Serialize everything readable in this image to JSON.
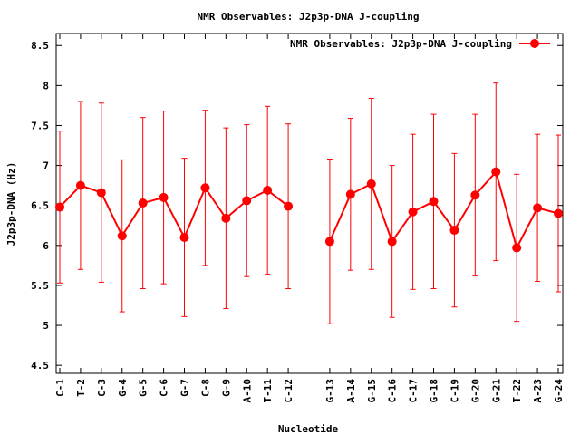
{
  "chart_data": {
    "type": "line",
    "title": "NMR Observables: J2p3p-DNA J-coupling",
    "xlabel": "Nucleotide",
    "ylabel": "J2p3p-DNA (Hz)",
    "ylim": [
      4.4,
      8.65
    ],
    "yticks": [
      4.5,
      5,
      5.5,
      6,
      6.5,
      7,
      7.5,
      8,
      8.5
    ],
    "ytick_labels": [
      "4.5",
      "5",
      "5.5",
      "6",
      "6.5",
      "7",
      "7.5",
      "8",
      "8.5"
    ],
    "xlim": [
      1,
      25
    ],
    "legend_position": "top-right",
    "grid": false,
    "color": "#ff0000",
    "series": [
      {
        "name": "NMR Observables: J2p3p-DNA J-coupling",
        "points": [
          {
            "x": 1,
            "label": "C-1",
            "y": 6.48,
            "err": 0.95
          },
          {
            "x": 2,
            "label": "T-2",
            "y": 6.75,
            "err": 1.05
          },
          {
            "x": 3,
            "label": "C-3",
            "y": 6.66,
            "err": 1.12
          },
          {
            "x": 4,
            "label": "G-4",
            "y": 6.12,
            "err": 0.95
          },
          {
            "x": 5,
            "label": "G-5",
            "y": 6.53,
            "err": 1.07
          },
          {
            "x": 6,
            "label": "C-6",
            "y": 6.6,
            "err": 1.08
          },
          {
            "x": 7,
            "label": "G-7",
            "y": 6.1,
            "err": 0.99
          },
          {
            "x": 8,
            "label": "C-8",
            "y": 6.72,
            "err": 0.97
          },
          {
            "x": 9,
            "label": "G-9",
            "y": 6.34,
            "err": 1.13
          },
          {
            "x": 10,
            "label": "A-10",
            "y": 6.56,
            "err": 0.95
          },
          {
            "x": 11,
            "label": "T-11",
            "y": 6.69,
            "err": 1.05
          },
          {
            "x": 12,
            "label": "C-12",
            "y": 6.49,
            "err": 1.03
          },
          {
            "x": 14,
            "label": "G-13",
            "y": 6.05,
            "err": 1.03
          },
          {
            "x": 15,
            "label": "A-14",
            "y": 6.64,
            "err": 0.95
          },
          {
            "x": 16,
            "label": "G-15",
            "y": 6.77,
            "err": 1.07
          },
          {
            "x": 17,
            "label": "C-16",
            "y": 6.05,
            "err": 0.95
          },
          {
            "x": 18,
            "label": "C-17",
            "y": 6.42,
            "err": 0.97
          },
          {
            "x": 19,
            "label": "G-18",
            "y": 6.55,
            "err": 1.09
          },
          {
            "x": 20,
            "label": "C-19",
            "y": 6.19,
            "err": 0.96
          },
          {
            "x": 21,
            "label": "G-20",
            "y": 6.63,
            "err": 1.01
          },
          {
            "x": 22,
            "label": "G-21",
            "y": 6.92,
            "err": 1.11
          },
          {
            "x": 23,
            "label": "T-22",
            "y": 5.97,
            "err": 0.92
          },
          {
            "x": 24,
            "label": "A-23",
            "y": 6.47,
            "err": 0.92
          },
          {
            "x": 25,
            "label": "G-24",
            "y": 6.4,
            "err": 0.98
          }
        ]
      }
    ]
  }
}
